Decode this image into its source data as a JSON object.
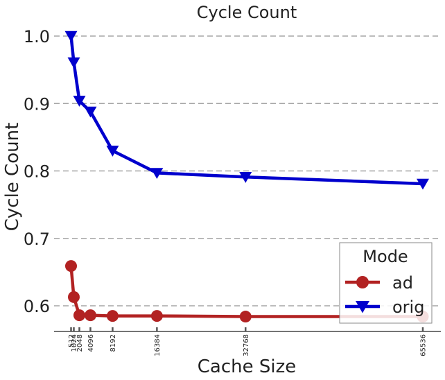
{
  "chart_data": {
    "type": "line",
    "title": "Cycle Count",
    "xlabel": "Cache Size",
    "ylabel": "Cycle Count",
    "ylim": [
      0.56,
      1.02
    ],
    "xlim": [
      0,
      67600
    ],
    "yticks": [
      0.6,
      0.7,
      0.8,
      0.9,
      1.0
    ],
    "ytick_labels": [
      "0.6",
      "0.7",
      "0.8",
      "0.9",
      "1.0"
    ],
    "x": [
      512,
      1024,
      2048,
      4096,
      8192,
      16384,
      32768,
      65536
    ],
    "xtick_labels": [
      "512",
      "1024",
      "2048",
      "4096",
      "8192",
      "16384",
      "32768",
      "65536"
    ],
    "grid": "horizontal-dashed",
    "legend": {
      "title": "Mode",
      "position": "lower-right"
    },
    "series": [
      {
        "name": "ad",
        "color": "#b22222",
        "marker": "circle",
        "values": [
          0.659,
          0.613,
          0.586,
          0.586,
          0.585,
          0.585,
          0.584,
          0.584
        ]
      },
      {
        "name": "orig",
        "color": "#0000cd",
        "marker": "triangle-down",
        "values": [
          1.0,
          0.961,
          0.904,
          0.888,
          0.83,
          0.797,
          0.791,
          0.781
        ]
      }
    ]
  }
}
